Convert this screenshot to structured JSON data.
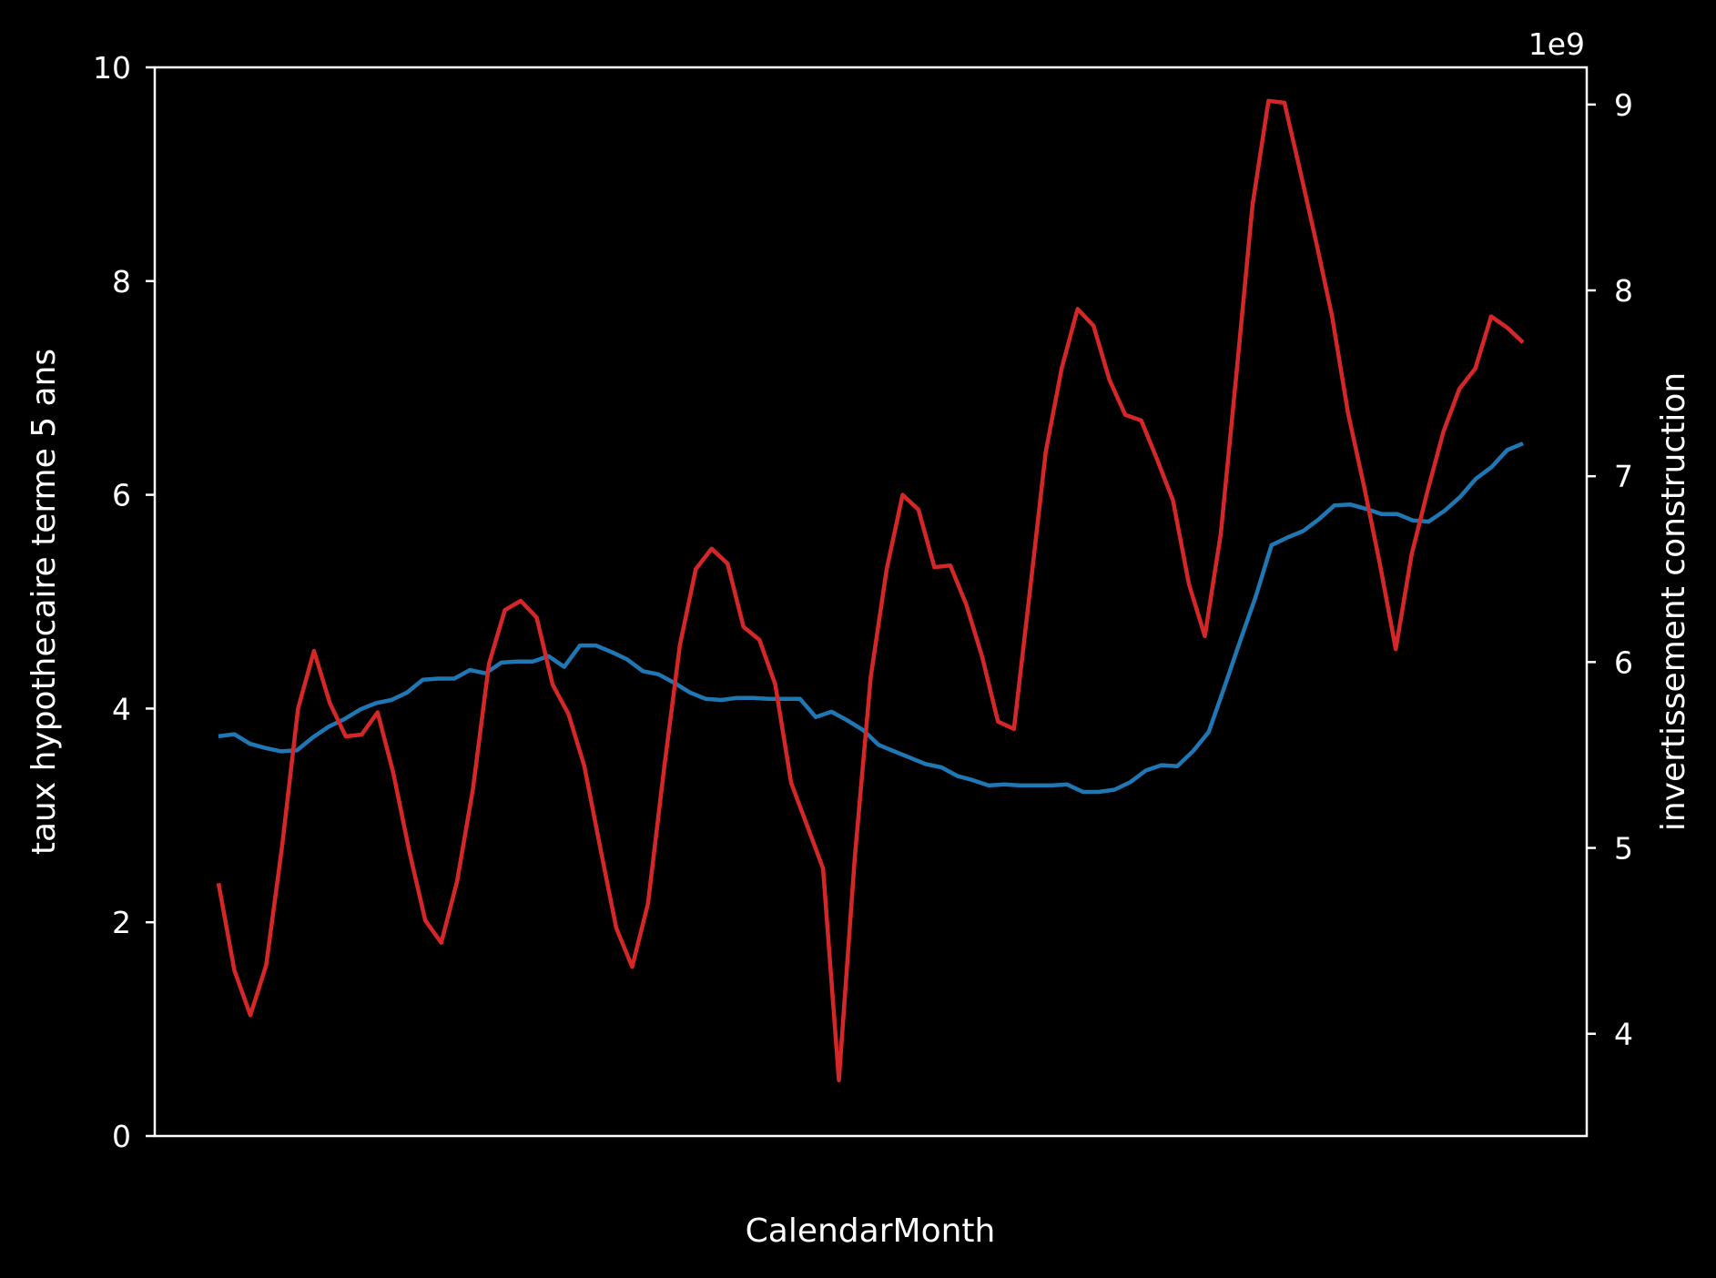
{
  "chart_data": {
    "type": "line",
    "background": "#000000",
    "foreground": "#ffffff",
    "xlabel": "CalendarMonth",
    "x_tick_labels": [],
    "grid": false,
    "legend": "none",
    "y_left": {
      "label": "taux hypothecaire terme 5 ans",
      "ylim": [
        0,
        10
      ],
      "ticks": [
        0,
        2,
        4,
        6,
        8,
        10
      ]
    },
    "y_right": {
      "label": "invertissement construction",
      "ylim": [
        3.45,
        9.2
      ],
      "ticks": [
        4,
        5,
        6,
        7,
        8,
        9
      ],
      "multiplier_label": "1e9"
    },
    "series": [
      {
        "axis": "left",
        "color": "#1f77b4",
        "values": [
          3.74,
          3.76,
          3.67,
          3.63,
          3.6,
          3.61,
          3.73,
          3.83,
          3.9,
          3.99,
          4.05,
          4.08,
          4.15,
          4.27,
          4.28,
          4.28,
          4.36,
          4.33,
          4.43,
          4.44,
          4.44,
          4.49,
          4.39,
          4.59,
          4.59,
          4.53,
          4.46,
          4.35,
          4.32,
          4.24,
          4.15,
          4.09,
          4.08,
          4.1,
          4.1,
          4.09,
          4.09,
          4.09,
          3.92,
          3.97,
          3.89,
          3.8,
          3.66,
          3.6,
          3.54,
          3.48,
          3.45,
          3.37,
          3.33,
          3.28,
          3.29,
          3.28,
          3.28,
          3.28,
          3.29,
          3.22,
          3.22,
          3.24,
          3.31,
          3.42,
          3.47,
          3.46,
          3.6,
          3.78,
          4.2,
          4.63,
          5.05,
          5.53,
          5.6,
          5.66,
          5.77,
          5.9,
          5.91,
          5.87,
          5.82,
          5.82,
          5.76,
          5.75,
          5.85,
          5.98,
          6.15,
          6.26,
          6.42,
          6.48
        ]
      },
      {
        "axis": "right",
        "color": "#d62728",
        "values": [
          4.81,
          4.34,
          4.1,
          4.37,
          5.01,
          5.75,
          6.06,
          5.78,
          5.6,
          5.61,
          5.73,
          5.4,
          4.98,
          4.61,
          4.49,
          4.82,
          5.32,
          5.99,
          6.28,
          6.33,
          6.24,
          5.88,
          5.72,
          5.44,
          5.0,
          4.57,
          4.36,
          4.7,
          5.42,
          6.09,
          6.5,
          6.61,
          6.53,
          6.19,
          6.12,
          5.88,
          5.35,
          5.12,
          4.89,
          3.75,
          4.95,
          5.92,
          6.5,
          6.9,
          6.82,
          6.51,
          6.52,
          6.31,
          6.03,
          5.68,
          5.64,
          6.38,
          7.13,
          7.58,
          7.9,
          7.81,
          7.52,
          7.33,
          7.3,
          7.09,
          6.87,
          6.42,
          6.14,
          6.69,
          7.56,
          8.46,
          9.02,
          9.01,
          8.64,
          8.26,
          7.86,
          7.34,
          6.95,
          6.53,
          6.07,
          6.58,
          6.92,
          7.24,
          7.47,
          7.58,
          7.86,
          7.8,
          7.72
        ]
      }
    ]
  }
}
